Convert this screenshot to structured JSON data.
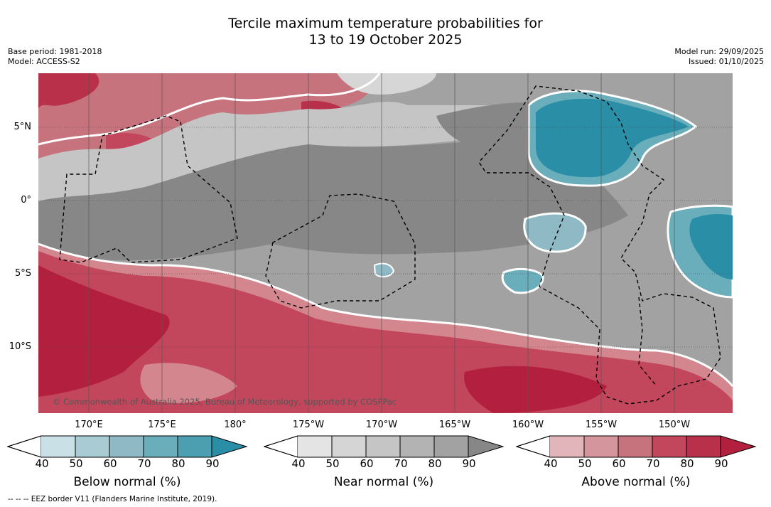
{
  "title": {
    "line1": "Tercile maximum temperature probabilities for",
    "line2": "13 to 19 October 2025"
  },
  "meta_left": {
    "base_period": "Base period: 1981-2018",
    "model": "Model: ACCESS-S2"
  },
  "meta_right": {
    "model_run": "Model run: 29/09/2025",
    "issued": "Issued: 01/10/2025"
  },
  "map": {
    "lat_labels": [
      "5°N",
      "0°",
      "5°S",
      "10°S"
    ],
    "lon_labels": [
      "170°E",
      "175°E",
      "180°",
      "175°W",
      "170°W",
      "165°W",
      "160°W",
      "155°W",
      "150°W"
    ],
    "copyright": "© Commonwealth of Australia 2025, Bureau of Meteorology, supported by COSPPac",
    "colors": {
      "near_dark": "#878787",
      "near_mid": "#a2a2a2",
      "near_light": "#c5c5c5",
      "near_pale": "#d6d6d6",
      "above_dark": "#b31f3f",
      "above_mid": "#c3475c",
      "above_light": "#d4868f",
      "above_pale": "#e2b5ba",
      "below_dark": "#2a8fa6",
      "below_mid": "#6aaebc",
      "below_light": "#a9cbd3"
    }
  },
  "colorbars": [
    {
      "title": "Below normal (%)",
      "ticks": [
        "40",
        "50",
        "60",
        "70",
        "80",
        "90"
      ],
      "colors": [
        "#c9e0e6",
        "#a9cbd3",
        "#8fbac5",
        "#6aaebc",
        "#4b9fb1",
        "#2a8fa6"
      ]
    },
    {
      "title": "Near normal (%)",
      "ticks": [
        "40",
        "50",
        "60",
        "70",
        "80",
        "90"
      ],
      "colors": [
        "#e4e4e4",
        "#d5d5d5",
        "#c5c5c5",
        "#b3b3b3",
        "#a2a2a2",
        "#878787"
      ]
    },
    {
      "title": "Above normal (%)",
      "ticks": [
        "40",
        "50",
        "60",
        "70",
        "80",
        "90"
      ],
      "colors": [
        "#e2b5ba",
        "#d4959c",
        "#c7737e",
        "#c3475c",
        "#b83049",
        "#b31f3f"
      ]
    }
  ],
  "footnote": "--  --  -- EEZ border V11 (Flanders Marine Institute, 2019)."
}
